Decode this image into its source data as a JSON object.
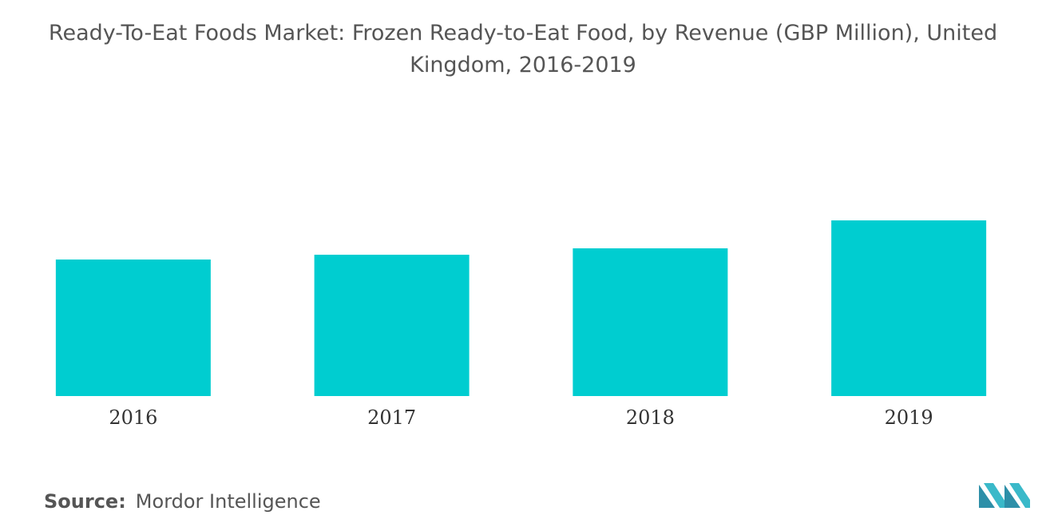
{
  "chart_data": {
    "type": "bar",
    "title": "Ready-To-Eat Foods Market: Frozen Ready-to-Eat Food, by Revenue (GBP Million), United Kingdom, 2016-2019",
    "categories": [
      "2016",
      "2017",
      "2018",
      "2019"
    ],
    "values": [
      171,
      177,
      185,
      220
    ],
    "color": "#00cdd0",
    "source_label": "Source:",
    "source": "Mordor Intelligence"
  }
}
